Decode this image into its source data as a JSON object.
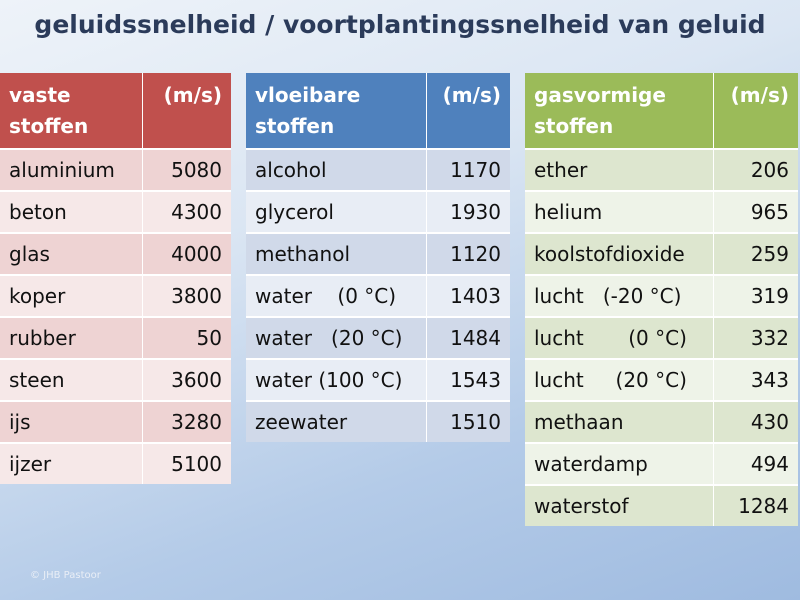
{
  "title": "geluidssnelheid / voortplantingssnelheid van geluid",
  "unit": "(m/s)",
  "solids": {
    "header_line1": "vaste",
    "header_line2": "stoffen",
    "rows": [
      {
        "name": "aluminium",
        "value": "5080"
      },
      {
        "name": "beton",
        "value": "4300"
      },
      {
        "name": "glas",
        "value": "4000"
      },
      {
        "name": "koper",
        "value": "3800"
      },
      {
        "name": "rubber",
        "value": "50"
      },
      {
        "name": "steen",
        "value": "3600"
      },
      {
        "name": "ijs",
        "value": "3280"
      },
      {
        "name": "ijzer",
        "value": "5100"
      }
    ]
  },
  "liquids": {
    "header_line1": "vloeibare",
    "header_line2": "stoffen",
    "rows": [
      {
        "name": "alcohol",
        "value": "1170"
      },
      {
        "name": "glycerol",
        "value": "1930"
      },
      {
        "name": "methanol",
        "value": "1120"
      },
      {
        "name": "water    (0 °C)",
        "value": "1403"
      },
      {
        "name": "water   (20 °C)",
        "value": "1484"
      },
      {
        "name": "water (100 °C)",
        "value": "1543"
      },
      {
        "name": "zeewater",
        "value": "1510"
      }
    ]
  },
  "gases": {
    "header_line1": "gasvormige",
    "header_line2": "stoffen",
    "rows": [
      {
        "name": "ether",
        "value": "206"
      },
      {
        "name": "helium",
        "value": "965"
      },
      {
        "name": "koolstofdioxide",
        "value": "259"
      },
      {
        "name": "lucht   (-20 °C)",
        "value": "319"
      },
      {
        "name": "lucht       (0 °C)",
        "value": "332"
      },
      {
        "name": "lucht     (20 °C)",
        "value": "343"
      },
      {
        "name": "methaan",
        "value": "430"
      },
      {
        "name": "waterdamp",
        "value": "494"
      },
      {
        "name": "waterstof",
        "value": "1284"
      }
    ]
  },
  "copyright": "© JHB Pastoor"
}
